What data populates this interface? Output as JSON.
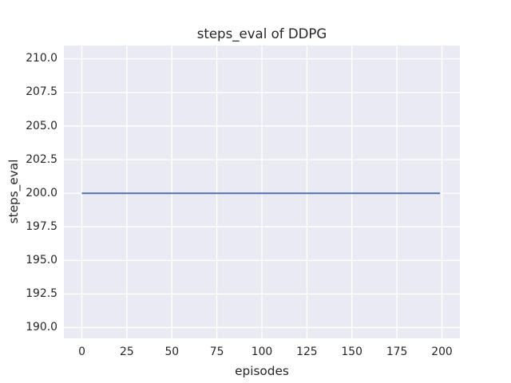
{
  "figure": {
    "background": "#ffffff",
    "text_color": "#262626"
  },
  "chart_data": {
    "type": "line",
    "title": "steps_eval of DDPG",
    "xlabel": "episodes",
    "ylabel": "steps_eval",
    "xlim": [
      -10,
      210
    ],
    "ylim": [
      189.2,
      211.0
    ],
    "xticks": {
      "values": [
        0,
        25,
        50,
        75,
        100,
        125,
        150,
        175,
        200
      ],
      "labels": [
        "0",
        "25",
        "50",
        "75",
        "100",
        "125",
        "150",
        "175",
        "200"
      ]
    },
    "yticks": {
      "values": [
        190.0,
        192.5,
        195.0,
        197.5,
        200.0,
        202.5,
        205.0,
        207.5,
        210.0
      ],
      "labels": [
        "190.0",
        "192.5",
        "195.0",
        "197.5",
        "200.0",
        "202.5",
        "205.0",
        "207.5",
        "210.0"
      ]
    },
    "grid": true,
    "grid_color": "#ffffff",
    "plot_background": "#eaeaf2",
    "legend": null,
    "series": [
      {
        "name": "steps_eval of DDPG",
        "color": "#4c72b0",
        "line_width": 2,
        "x": [
          0,
          199
        ],
        "y": [
          200,
          200
        ]
      }
    ]
  }
}
